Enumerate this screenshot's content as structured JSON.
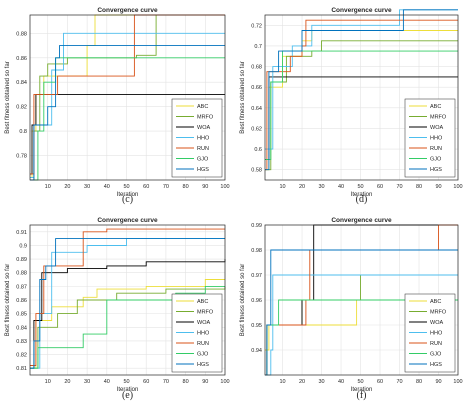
{
  "colors": {
    "ABC": "#edde3a",
    "MRFO": "#77ac30",
    "WOA": "#000000",
    "HHO": "#4dbeee",
    "RUN": "#d95319",
    "GJO": "#33cc66",
    "HGS": "#0072bd"
  },
  "chart_data": [
    {
      "type": "line",
      "title": "Convergence curve",
      "xlabel": "Iteration",
      "ylabel": "Best fitness obtained so far",
      "caption": "(c)",
      "xlim": [
        1,
        100
      ],
      "ylim": [
        0.76,
        0.895
      ],
      "xticks": [
        "10",
        "20",
        "30",
        "40",
        "50",
        "60",
        "70",
        "80",
        "90",
        "100"
      ],
      "yticks": [
        "0.78",
        "0.8",
        "0.82",
        "0.84",
        "0.86",
        "0.88"
      ],
      "yticks_values": [
        0.78,
        0.8,
        0.82,
        0.84,
        0.86,
        0.88
      ],
      "legend_position": "bottom-right",
      "grid": true,
      "series": [
        {
          "name": "ABC",
          "points": [
            [
              1,
              0.762
            ],
            [
              2,
              0.8
            ],
            [
              4,
              0.83
            ],
            [
              8,
              0.845
            ],
            [
              30,
              0.87
            ],
            [
              34,
              0.895
            ],
            [
              100,
              0.895
            ]
          ]
        },
        {
          "name": "MRFO",
          "points": [
            [
              1,
              0.76
            ],
            [
              3,
              0.8
            ],
            [
              6,
              0.845
            ],
            [
              10,
              0.855
            ],
            [
              20,
              0.86
            ],
            [
              55,
              0.862
            ],
            [
              65,
              0.895
            ],
            [
              100,
              0.895
            ]
          ]
        },
        {
          "name": "WOA",
          "points": [
            [
              1,
              0.765
            ],
            [
              2,
              0.805
            ],
            [
              4,
              0.83
            ],
            [
              100,
              0.83
            ]
          ]
        },
        {
          "name": "HHO",
          "points": [
            [
              1,
              0.762
            ],
            [
              3,
              0.805
            ],
            [
              12,
              0.85
            ],
            [
              18,
              0.88
            ],
            [
              100,
              0.88
            ]
          ]
        },
        {
          "name": "RUN",
          "points": [
            [
              1,
              0.765
            ],
            [
              3,
              0.83
            ],
            [
              15,
              0.845
            ],
            [
              45,
              0.845
            ],
            [
              54,
              0.895
            ],
            [
              100,
              0.895
            ]
          ]
        },
        {
          "name": "GJO",
          "points": [
            [
              1,
              0.76
            ],
            [
              5,
              0.8
            ],
            [
              8,
              0.84
            ],
            [
              14,
              0.86
            ],
            [
              100,
              0.86
            ]
          ]
        },
        {
          "name": "HGS",
          "points": [
            [
              1,
              0.76
            ],
            [
              3,
              0.805
            ],
            [
              10,
              0.82
            ],
            [
              14,
              0.86
            ],
            [
              16,
              0.87
            ],
            [
              100,
              0.87
            ]
          ]
        }
      ]
    },
    {
      "type": "line",
      "title": "Convergence curve",
      "xlabel": "Iteration",
      "ylabel": "Best fitness obtained so far",
      "caption": "(d)",
      "xlim": [
        1,
        100
      ],
      "ylim": [
        0.57,
        0.73
      ],
      "xticks": [
        "10",
        "20",
        "30",
        "40",
        "50",
        "60",
        "70",
        "80",
        "90",
        "100"
      ],
      "yticks": [
        "0.58",
        "0.6",
        "0.62",
        "0.64",
        "0.66",
        "0.68",
        "0.7",
        "0.72"
      ],
      "yticks_values": [
        0.58,
        0.6,
        0.62,
        0.64,
        0.66,
        0.68,
        0.7,
        0.72
      ],
      "legend_position": "bottom-right",
      "grid": true,
      "series": [
        {
          "name": "ABC",
          "points": [
            [
              1,
              0.58
            ],
            [
              3,
              0.66
            ],
            [
              10,
              0.69
            ],
            [
              20,
              0.705
            ],
            [
              25,
              0.715
            ],
            [
              100,
              0.715
            ]
          ]
        },
        {
          "name": "MRFO",
          "points": [
            [
              1,
              0.58
            ],
            [
              4,
              0.665
            ],
            [
              12,
              0.69
            ],
            [
              25,
              0.695
            ],
            [
              30,
              0.705
            ],
            [
              100,
              0.705
            ]
          ]
        },
        {
          "name": "WOA",
          "points": [
            [
              1,
              0.59
            ],
            [
              3,
              0.67
            ],
            [
              100,
              0.67
            ]
          ]
        },
        {
          "name": "HHO",
          "points": [
            [
              1,
              0.6
            ],
            [
              5,
              0.68
            ],
            [
              15,
              0.7
            ],
            [
              25,
              0.72
            ],
            [
              70,
              0.735
            ],
            [
              100,
              0.735
            ]
          ]
        },
        {
          "name": "RUN",
          "points": [
            [
              1,
              0.58
            ],
            [
              2,
              0.675
            ],
            [
              14,
              0.69
            ],
            [
              20,
              0.7
            ],
            [
              22,
              0.725
            ],
            [
              100,
              0.725
            ]
          ]
        },
        {
          "name": "GJO",
          "points": [
            [
              1,
              0.59
            ],
            [
              4,
              0.665
            ],
            [
              10,
              0.695
            ],
            [
              100,
              0.695
            ]
          ]
        },
        {
          "name": "HGS",
          "points": [
            [
              1,
              0.58
            ],
            [
              3,
              0.675
            ],
            [
              8,
              0.695
            ],
            [
              20,
              0.715
            ],
            [
              72,
              0.735
            ],
            [
              100,
              0.735
            ]
          ]
        }
      ]
    },
    {
      "type": "line",
      "title": "Convergence curve",
      "xlabel": "Iteration",
      "ylabel": "Best fitness obtained so far",
      "caption": "(e)",
      "xlim": [
        1,
        100
      ],
      "ylim": [
        0.805,
        0.915
      ],
      "xticks": [
        "10",
        "20",
        "30",
        "40",
        "50",
        "60",
        "70",
        "80",
        "90",
        "100"
      ],
      "yticks": [
        "0.81",
        "0.82",
        "0.83",
        "0.84",
        "0.85",
        "0.86",
        "0.87",
        "0.88",
        "0.89",
        "0.9",
        "0.91"
      ],
      "yticks_values": [
        0.81,
        0.82,
        0.83,
        0.84,
        0.85,
        0.86,
        0.87,
        0.88,
        0.89,
        0.9,
        0.91
      ],
      "legend_position": "bottom-right",
      "grid": true,
      "series": [
        {
          "name": "ABC",
          "points": [
            [
              1,
              0.81
            ],
            [
              4,
              0.845
            ],
            [
              12,
              0.855
            ],
            [
              28,
              0.862
            ],
            [
              35,
              0.868
            ],
            [
              60,
              0.87
            ],
            [
              90,
              0.875
            ],
            [
              100,
              0.875
            ]
          ]
        },
        {
          "name": "MRFO",
          "points": [
            [
              1,
              0.81
            ],
            [
              5,
              0.84
            ],
            [
              15,
              0.85
            ],
            [
              25,
              0.86
            ],
            [
              45,
              0.865
            ],
            [
              70,
              0.868
            ],
            [
              100,
              0.87
            ]
          ]
        },
        {
          "name": "WOA",
          "points": [
            [
              1,
              0.81
            ],
            [
              3,
              0.845
            ],
            [
              7,
              0.88
            ],
            [
              20,
              0.883
            ],
            [
              40,
              0.885
            ],
            [
              60,
              0.888
            ],
            [
              100,
              0.89
            ]
          ]
        },
        {
          "name": "HHO",
          "points": [
            [
              1,
              0.81
            ],
            [
              6,
              0.85
            ],
            [
              12,
              0.895
            ],
            [
              30,
              0.9
            ],
            [
              50,
              0.905
            ],
            [
              100,
              0.905
            ]
          ]
        },
        {
          "name": "RUN",
          "points": [
            [
              1,
              0.812
            ],
            [
              4,
              0.85
            ],
            [
              8,
              0.885
            ],
            [
              28,
              0.91
            ],
            [
              40,
              0.912
            ],
            [
              100,
              0.912
            ]
          ]
        },
        {
          "name": "GJO",
          "points": [
            [
              1,
              0.81
            ],
            [
              5,
              0.825
            ],
            [
              28,
              0.835
            ],
            [
              40,
              0.86
            ],
            [
              75,
              0.865
            ],
            [
              90,
              0.87
            ],
            [
              100,
              0.87
            ]
          ]
        },
        {
          "name": "HGS",
          "points": [
            [
              1,
              0.81
            ],
            [
              3,
              0.83
            ],
            [
              6,
              0.875
            ],
            [
              9,
              0.885
            ],
            [
              14,
              0.905
            ],
            [
              100,
              0.905
            ]
          ]
        }
      ]
    },
    {
      "type": "line",
      "title": "Convergence curve",
      "xlabel": "Iteration",
      "ylabel": "Best fitness obtained so far",
      "caption": "(f)",
      "xlim": [
        1,
        100
      ],
      "ylim": [
        0.93,
        0.99
      ],
      "xticks": [
        "10",
        "20",
        "30",
        "40",
        "50",
        "60",
        "70",
        "80",
        "90",
        "100"
      ],
      "yticks": [
        "0.94",
        "0.95",
        "0.96",
        "0.97",
        "0.98",
        "0.99"
      ],
      "yticks_values": [
        0.94,
        0.95,
        0.96,
        0.97,
        0.98,
        0.99
      ],
      "legend_position": "bottom-right",
      "grid": true,
      "series": [
        {
          "name": "ABC",
          "points": [
            [
              1,
              0.94
            ],
            [
              3,
              0.95
            ],
            [
              10,
              0.95
            ],
            [
              45,
              0.95
            ],
            [
              48,
              0.96
            ],
            [
              100,
              0.96
            ]
          ]
        },
        {
          "name": "MRFO",
          "points": [
            [
              1,
              0.93
            ],
            [
              2,
              0.95
            ],
            [
              20,
              0.96
            ],
            [
              48,
              0.96
            ],
            [
              50,
              0.97
            ],
            [
              100,
              0.97
            ]
          ]
        },
        {
          "name": "WOA",
          "points": [
            [
              1,
              0.93
            ],
            [
              2,
              0.95
            ],
            [
              20,
              0.96
            ],
            [
              26,
              0.99
            ],
            [
              100,
              0.99
            ]
          ]
        },
        {
          "name": "HHO",
          "points": [
            [
              1,
              0.93
            ],
            [
              4,
              0.94
            ],
            [
              5,
              0.97
            ],
            [
              100,
              0.97
            ]
          ]
        },
        {
          "name": "RUN",
          "points": [
            [
              1,
              0.93
            ],
            [
              2,
              0.95
            ],
            [
              22,
              0.96
            ],
            [
              24,
              0.98
            ],
            [
              88,
              0.98
            ],
            [
              90,
              0.99
            ],
            [
              100,
              0.99
            ]
          ]
        },
        {
          "name": "GJO",
          "points": [
            [
              1,
              0.93
            ],
            [
              2,
              0.95
            ],
            [
              8,
              0.96
            ],
            [
              100,
              0.96
            ]
          ]
        },
        {
          "name": "HGS",
          "points": [
            [
              1,
              0.93
            ],
            [
              2,
              0.95
            ],
            [
              4,
              0.98
            ],
            [
              100,
              0.98
            ]
          ]
        }
      ]
    }
  ]
}
